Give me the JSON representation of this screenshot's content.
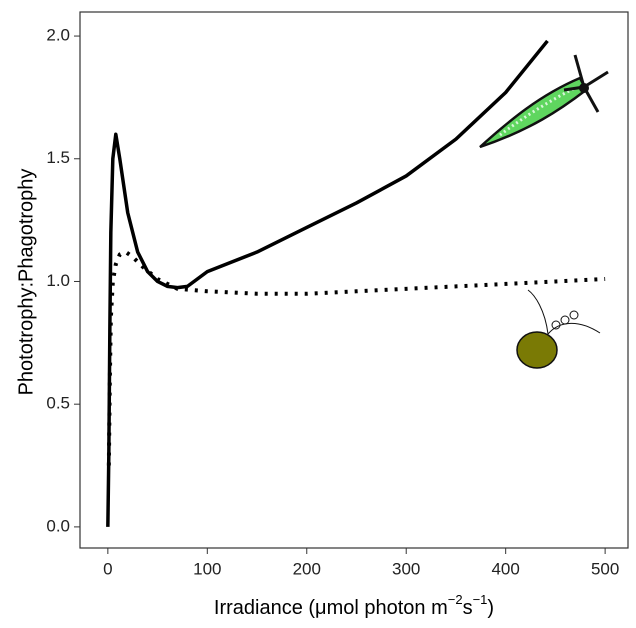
{
  "chart_data": {
    "type": "line",
    "x_label": [
      "Irradiance (μmol photon m",
      "−2",
      "s",
      "−1",
      ")"
    ],
    "y_label": "Phototrophy:Phagotrophy",
    "xlim": [
      -28,
      523
    ],
    "ylim": [
      -0.086,
      2.098
    ],
    "xticks": [
      0,
      100,
      200,
      300,
      400,
      500
    ],
    "yticks": [
      {
        "value": 0,
        "label": "0.0"
      },
      {
        "value": 0.5,
        "label": "0.5"
      },
      {
        "value": 1,
        "label": "1.0"
      },
      {
        "value": 1.5,
        "label": "1.5"
      },
      {
        "value": 2,
        "label": "2.0"
      }
    ],
    "series": [
      {
        "color": "#000000",
        "style": "solid",
        "x": [
          0,
          1,
          2,
          3,
          5,
          8,
          12,
          20,
          30,
          40,
          50,
          60,
          70,
          80,
          100,
          150,
          200,
          250,
          300,
          350,
          400,
          442
        ],
        "values": [
          0.0,
          0.3,
          0.8,
          1.2,
          1.5,
          1.6,
          1.5,
          1.28,
          1.12,
          1.04,
          1.0,
          0.98,
          0.975,
          0.98,
          1.04,
          1.12,
          1.22,
          1.32,
          1.43,
          1.58,
          1.77,
          1.98
        ]
      },
      {
        "color": "#000000",
        "style": "dotted",
        "x": [
          1,
          2,
          3,
          5,
          8,
          12,
          18,
          25,
          35,
          50,
          70,
          100,
          150,
          200,
          250,
          300,
          350,
          400,
          450,
          500
        ],
        "values": [
          0.25,
          0.6,
          0.85,
          1.0,
          1.07,
          1.11,
          1.12,
          1.1,
          1.06,
          1.01,
          0.97,
          0.96,
          0.95,
          0.95,
          0.96,
          0.97,
          0.98,
          0.99,
          1.0,
          1.01
        ]
      }
    ]
  }
}
